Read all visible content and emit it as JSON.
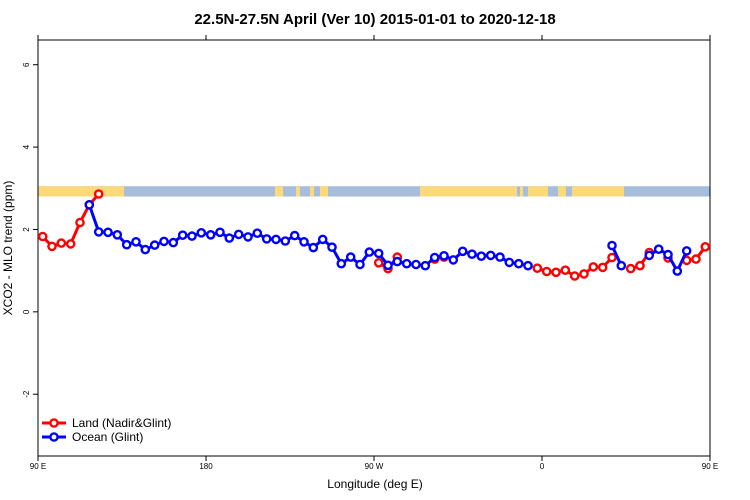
{
  "chart_data": {
    "type": "line",
    "title": "22.5N-27.5N April (Ver 10)   2015-01-01 to 2020-12-18",
    "xlabel": "Longitude (deg E)",
    "ylabel": "XCO2 - MLO trend (ppm)",
    "xlim": [
      90,
      450
    ],
    "ylim": [
      -3.5,
      6.6
    ],
    "x_ticks": [
      {
        "value": 90,
        "label": "90 E"
      },
      {
        "value": 180,
        "label": "180"
      },
      {
        "value": 270,
        "label": "90 W"
      },
      {
        "value": 360,
        "label": "0"
      },
      {
        "value": 450,
        "label": "90 E"
      },
      {
        "value": 540,
        "label": "180"
      }
    ],
    "y_ticks": [
      {
        "value": -2,
        "label": "-2"
      },
      {
        "value": 0,
        "label": "0"
      },
      {
        "value": 2,
        "label": "2"
      },
      {
        "value": 4,
        "label": "4"
      },
      {
        "value": 6,
        "label": "6"
      }
    ],
    "x_ticks_top": [
      0,
      90,
      180,
      270,
      360,
      450,
      540
    ],
    "land_band": {
      "y_bottom": 2.8,
      "y_top": 3.05,
      "ocean_color": "#a6bddb",
      "land_color": "#fcd97a"
    },
    "series": [
      {
        "name": "Land (Nadir&Glint)",
        "color": "#ff0000",
        "segments": [
          [
            [
              92.5,
              1.83
            ],
            [
              97.5,
              1.59
            ],
            [
              102.5,
              1.67
            ],
            [
              107.5,
              1.65
            ],
            [
              112.5,
              2.17
            ],
            [
              117.5,
              2.6
            ],
            [
              122.5,
              2.86
            ]
          ],
          [
            [
              272.5,
              1.19
            ],
            [
              277.5,
              1.05
            ],
            [
              282.5,
              1.33
            ]
          ],
          [
            [
              302.5,
              1.28
            ],
            [
              307.5,
              1.33
            ]
          ],
          [
            [
              357.5,
              1.06
            ],
            [
              362.5,
              0.98
            ],
            [
              367.5,
              0.96
            ],
            [
              372.5,
              1.01
            ],
            [
              377.5,
              0.87
            ],
            [
              382.5,
              0.92
            ],
            [
              387.5,
              1.09
            ],
            [
              392.5,
              1.08
            ],
            [
              397.5,
              1.32
            ]
          ],
          [
            [
              407.5,
              1.05
            ],
            [
              412.5,
              1.12
            ],
            [
              417.5,
              1.44
            ]
          ],
          [
            [
              427.5,
              1.31
            ]
          ],
          [
            [
              437.5,
              1.25
            ],
            [
              442.5,
              1.28
            ],
            [
              447.5,
              1.58
            ],
            [
              452.5,
              1.62
            ],
            [
              457.5,
              1.81
            ],
            [
              462.5,
              1.59
            ],
            [
              467.5,
              1.67
            ],
            [
              472.5,
              1.65
            ],
            [
              477.5,
              2.17
            ],
            [
              482.5,
              2.6
            ],
            [
              487.5,
              2.86
            ]
          ]
        ]
      },
      {
        "name": "Ocean (Glint)",
        "color": "#0000ff",
        "segments": [
          [
            [
              117.5,
              2.6
            ],
            [
              122.5,
              1.94
            ],
            [
              127.5,
              1.93
            ],
            [
              132.5,
              1.87
            ],
            [
              137.5,
              1.63
            ],
            [
              142.5,
              1.7
            ],
            [
              147.5,
              1.51
            ],
            [
              152.5,
              1.62
            ],
            [
              157.5,
              1.71
            ],
            [
              162.5,
              1.68
            ],
            [
              167.5,
              1.86
            ],
            [
              172.5,
              1.84
            ],
            [
              177.5,
              1.92
            ],
            [
              182.5,
              1.87
            ],
            [
              187.5,
              1.93
            ],
            [
              192.5,
              1.79
            ],
            [
              197.5,
              1.88
            ],
            [
              202.5,
              1.82
            ],
            [
              207.5,
              1.91
            ],
            [
              212.5,
              1.77
            ],
            [
              217.5,
              1.76
            ],
            [
              222.5,
              1.72
            ],
            [
              227.5,
              1.85
            ],
            [
              232.5,
              1.7
            ],
            [
              237.5,
              1.56
            ],
            [
              242.5,
              1.76
            ],
            [
              247.5,
              1.57
            ],
            [
              252.5,
              1.17
            ],
            [
              257.5,
              1.33
            ],
            [
              262.5,
              1.15
            ],
            [
              267.5,
              1.45
            ],
            [
              272.5,
              1.42
            ],
            [
              277.5,
              1.13
            ],
            [
              282.5,
              1.22
            ],
            [
              287.5,
              1.17
            ],
            [
              292.5,
              1.15
            ],
            [
              297.5,
              1.12
            ],
            [
              302.5,
              1.32
            ],
            [
              307.5,
              1.36
            ],
            [
              312.5,
              1.26
            ],
            [
              317.5,
              1.47
            ],
            [
              322.5,
              1.4
            ],
            [
              327.5,
              1.35
            ],
            [
              332.5,
              1.37
            ],
            [
              337.5,
              1.33
            ],
            [
              342.5,
              1.2
            ],
            [
              347.5,
              1.17
            ],
            [
              352.5,
              1.12
            ]
          ],
          [
            [
              397.5,
              1.61
            ],
            [
              402.5,
              1.12
            ]
          ],
          [
            [
              417.5,
              1.37
            ],
            [
              422.5,
              1.52
            ],
            [
              427.5,
              1.39
            ],
            [
              432.5,
              0.99
            ],
            [
              437.5,
              1.48
            ]
          ],
          [
            [
              482.5,
              2.6
            ],
            [
              487.5,
              1.94
            ],
            [
              492.5,
              1.93
            ],
            [
              497.5,
              1.87
            ],
            [
              502.5,
              1.63
            ],
            [
              507.5,
              1.7
            ],
            [
              512.5,
              1.51
            ],
            [
              517.5,
              1.62
            ],
            [
              522.5,
              1.71
            ],
            [
              527.5,
              1.68
            ],
            [
              532.5,
              1.86
            ],
            [
              537.5,
              1.84
            ],
            [
              542.5,
              1.92
            ]
          ]
        ]
      }
    ],
    "legend": {
      "placement": "bottom-left"
    }
  }
}
